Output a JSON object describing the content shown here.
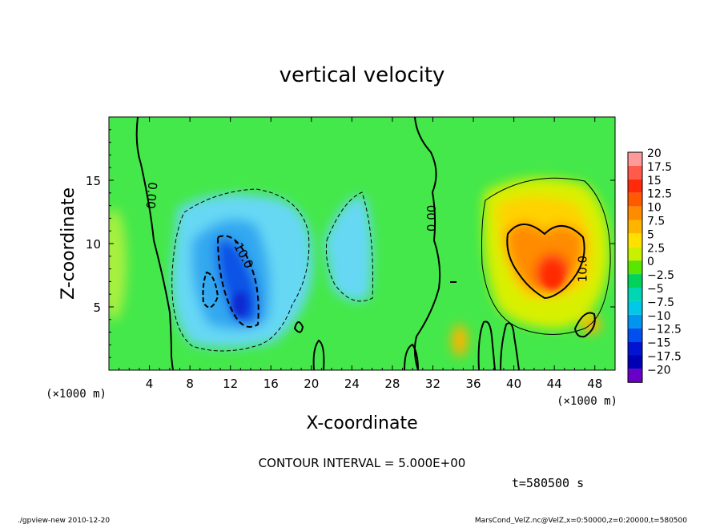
{
  "chart_data": {
    "type": "heatmap",
    "title": "vertical velocity",
    "xlabel": "X-coordinate",
    "ylabel": "Z-coordinate",
    "x_unit_label": "(×1000 m)",
    "x_unit_label_right": "(×1000 m)",
    "xlim": [
      0,
      50
    ],
    "ylim": [
      0,
      20
    ],
    "x_ticks": [
      "4",
      "8",
      "12",
      "16",
      "20",
      "24",
      "28",
      "32",
      "36",
      "40",
      "44",
      "48"
    ],
    "x_tick_values": [
      4,
      8,
      12,
      16,
      20,
      24,
      28,
      32,
      36,
      40,
      44,
      48
    ],
    "y_ticks": [
      "5",
      "10",
      "15"
    ],
    "y_tick_values": [
      5,
      10,
      15
    ],
    "colorbar": {
      "labels": [
        "20",
        "17.5",
        "15",
        "12.5",
        "10",
        "7.5",
        "5",
        "2.5",
        "0",
        "−2.5",
        "−5",
        "−7.5",
        "−10",
        "−12.5",
        "−15",
        "−17.5",
        "−20"
      ],
      "values": [
        20,
        17.5,
        15,
        12.5,
        10,
        7.5,
        5,
        2.5,
        0,
        -2.5,
        -5,
        -7.5,
        -10,
        -12.5,
        -15,
        -17.5,
        -20
      ],
      "colors": [
        "#ff9a9a",
        "#ff5a4a",
        "#ff2a0a",
        "#ff5a00",
        "#ff8c00",
        "#ffb400",
        "#ffe000",
        "#c8f000",
        "#5ae600",
        "#00d25a",
        "#00d6b4",
        "#00c8e6",
        "#0096f0",
        "#0050f0",
        "#0014d2",
        "#0000b4",
        "#6a00c8"
      ]
    },
    "contour_labels": [
      {
        "text": "0.00",
        "x": 4.2,
        "z": 13.8,
        "rotate": 95
      },
      {
        "text": "0.00",
        "x": 31.9,
        "z": 12.0,
        "rotate": -90
      },
      {
        "text": "-10.0",
        "x": 13.2,
        "z": 9.2,
        "rotate": 62
      },
      {
        "text": "10.0",
        "x": 46.8,
        "z": 8.0,
        "rotate": -90
      }
    ],
    "features": [
      {
        "name": "downdraft",
        "x": 13,
        "z": 7,
        "w_min": -14
      },
      {
        "name": "updraft",
        "x": 43.6,
        "z": 7.8,
        "w_max": 17
      }
    ]
  },
  "contour_interval": "CONTOUR INTERVAL = 5.000E+00",
  "time_label": "t=580500 s",
  "footer_left": "./gpview-new  2010-12-20",
  "footer_right": "MarsCond_VelZ.nc@VelZ,x=0:50000,z=0:20000,t=580500",
  "colors": {
    "background": "#44e84a",
    "contour": "#000000"
  }
}
